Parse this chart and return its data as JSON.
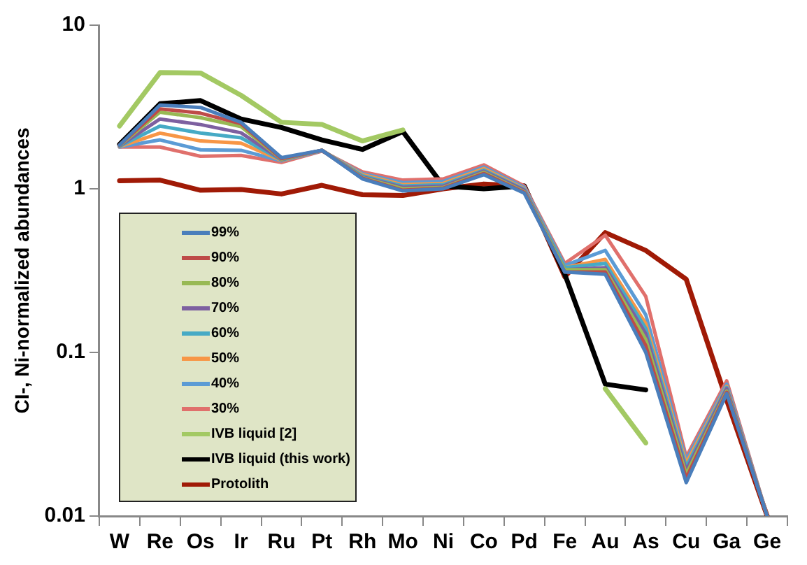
{
  "chart_data": {
    "type": "line",
    "ylabel": "CI-, Ni-normalized abundances",
    "categories": [
      "W",
      "Re",
      "Os",
      "Ir",
      "Ru",
      "Pt",
      "Rh",
      "Mo",
      "Ni",
      "Co",
      "Pd",
      "Fe",
      "Au",
      "As",
      "Cu",
      "Ga",
      "Ge"
    ],
    "log": true,
    "ylim": [
      0.01,
      10
    ],
    "yticks": [
      0.01,
      0.1,
      1,
      10
    ],
    "grid": false,
    "legend": "bottom left",
    "marker": "none",
    "line_style": "solid",
    "series": [
      {
        "name": "99%",
        "color": "#4a7ebb",
        "values": [
          1.85,
          3.25,
          3.14,
          2.55,
          1.55,
          1.72,
          1.15,
          0.97,
          1.0,
          1.22,
          0.94,
          0.31,
          0.3,
          0.1,
          0.016,
          0.056,
          0.01
        ]
      },
      {
        "name": "90%",
        "color": "#be4b48",
        "values": [
          1.85,
          3.08,
          2.9,
          2.5,
          1.53,
          1.72,
          1.16,
          0.98,
          1.01,
          1.24,
          0.95,
          0.31,
          0.31,
          0.11,
          0.017,
          0.057,
          0.01
        ]
      },
      {
        "name": "80%",
        "color": "#98b954",
        "values": [
          1.84,
          2.94,
          2.72,
          2.4,
          1.52,
          1.72,
          1.17,
          1.0,
          1.02,
          1.26,
          0.96,
          0.32,
          0.32,
          0.12,
          0.018,
          0.058,
          0.01
        ]
      },
      {
        "name": "70%",
        "color": "#7d60a0",
        "values": [
          1.83,
          2.67,
          2.47,
          2.2,
          1.51,
          1.72,
          1.18,
          1.02,
          1.04,
          1.28,
          0.98,
          0.32,
          0.33,
          0.13,
          0.019,
          0.06,
          0.01
        ]
      },
      {
        "name": "60%",
        "color": "#46aac5",
        "values": [
          1.82,
          2.42,
          2.19,
          2.05,
          1.5,
          1.72,
          1.2,
          1.04,
          1.06,
          1.3,
          0.99,
          0.33,
          0.35,
          0.14,
          0.02,
          0.061,
          0.01
        ]
      },
      {
        "name": "50%",
        "color": "#f79646",
        "values": [
          1.81,
          2.19,
          1.96,
          1.9,
          1.49,
          1.72,
          1.22,
          1.06,
          1.08,
          1.33,
          1.0,
          0.33,
          0.37,
          0.15,
          0.021,
          0.062,
          0.01
        ]
      },
      {
        "name": "40%",
        "color": "#5b9bd5",
        "values": [
          1.8,
          1.99,
          1.73,
          1.72,
          1.48,
          1.71,
          1.24,
          1.09,
          1.11,
          1.36,
          1.02,
          0.34,
          0.42,
          0.17,
          0.022,
          0.064,
          0.01
        ]
      },
      {
        "name": "30%",
        "color": "#e0706c",
        "values": [
          1.8,
          1.8,
          1.58,
          1.6,
          1.45,
          1.7,
          1.27,
          1.13,
          1.15,
          1.4,
          1.04,
          0.35,
          0.52,
          0.22,
          0.023,
          0.067,
          0.01
        ]
      },
      {
        "name": "IVB liquid [2]",
        "color": "#a3c963",
        "values": [
          2.42,
          5.13,
          5.1,
          3.73,
          2.55,
          2.47,
          1.96,
          2.29,
          null,
          null,
          null,
          null,
          0.06,
          0.028,
          null,
          null,
          null
        ]
      },
      {
        "name": "IVB liquid (this work)",
        "color": "#000000",
        "values": [
          1.87,
          3.31,
          3.46,
          2.67,
          2.37,
          1.99,
          1.74,
          2.24,
          1.04,
          1.0,
          1.04,
          0.3,
          0.064,
          0.059,
          null,
          null,
          null
        ]
      },
      {
        "name": "Protolith",
        "color": "#a01a06",
        "values": [
          1.12,
          1.13,
          0.98,
          0.99,
          0.93,
          1.05,
          0.92,
          0.91,
          1.0,
          1.07,
          1.04,
          0.29,
          0.54,
          0.42,
          0.28,
          0.051,
          0.01
        ]
      }
    ]
  }
}
